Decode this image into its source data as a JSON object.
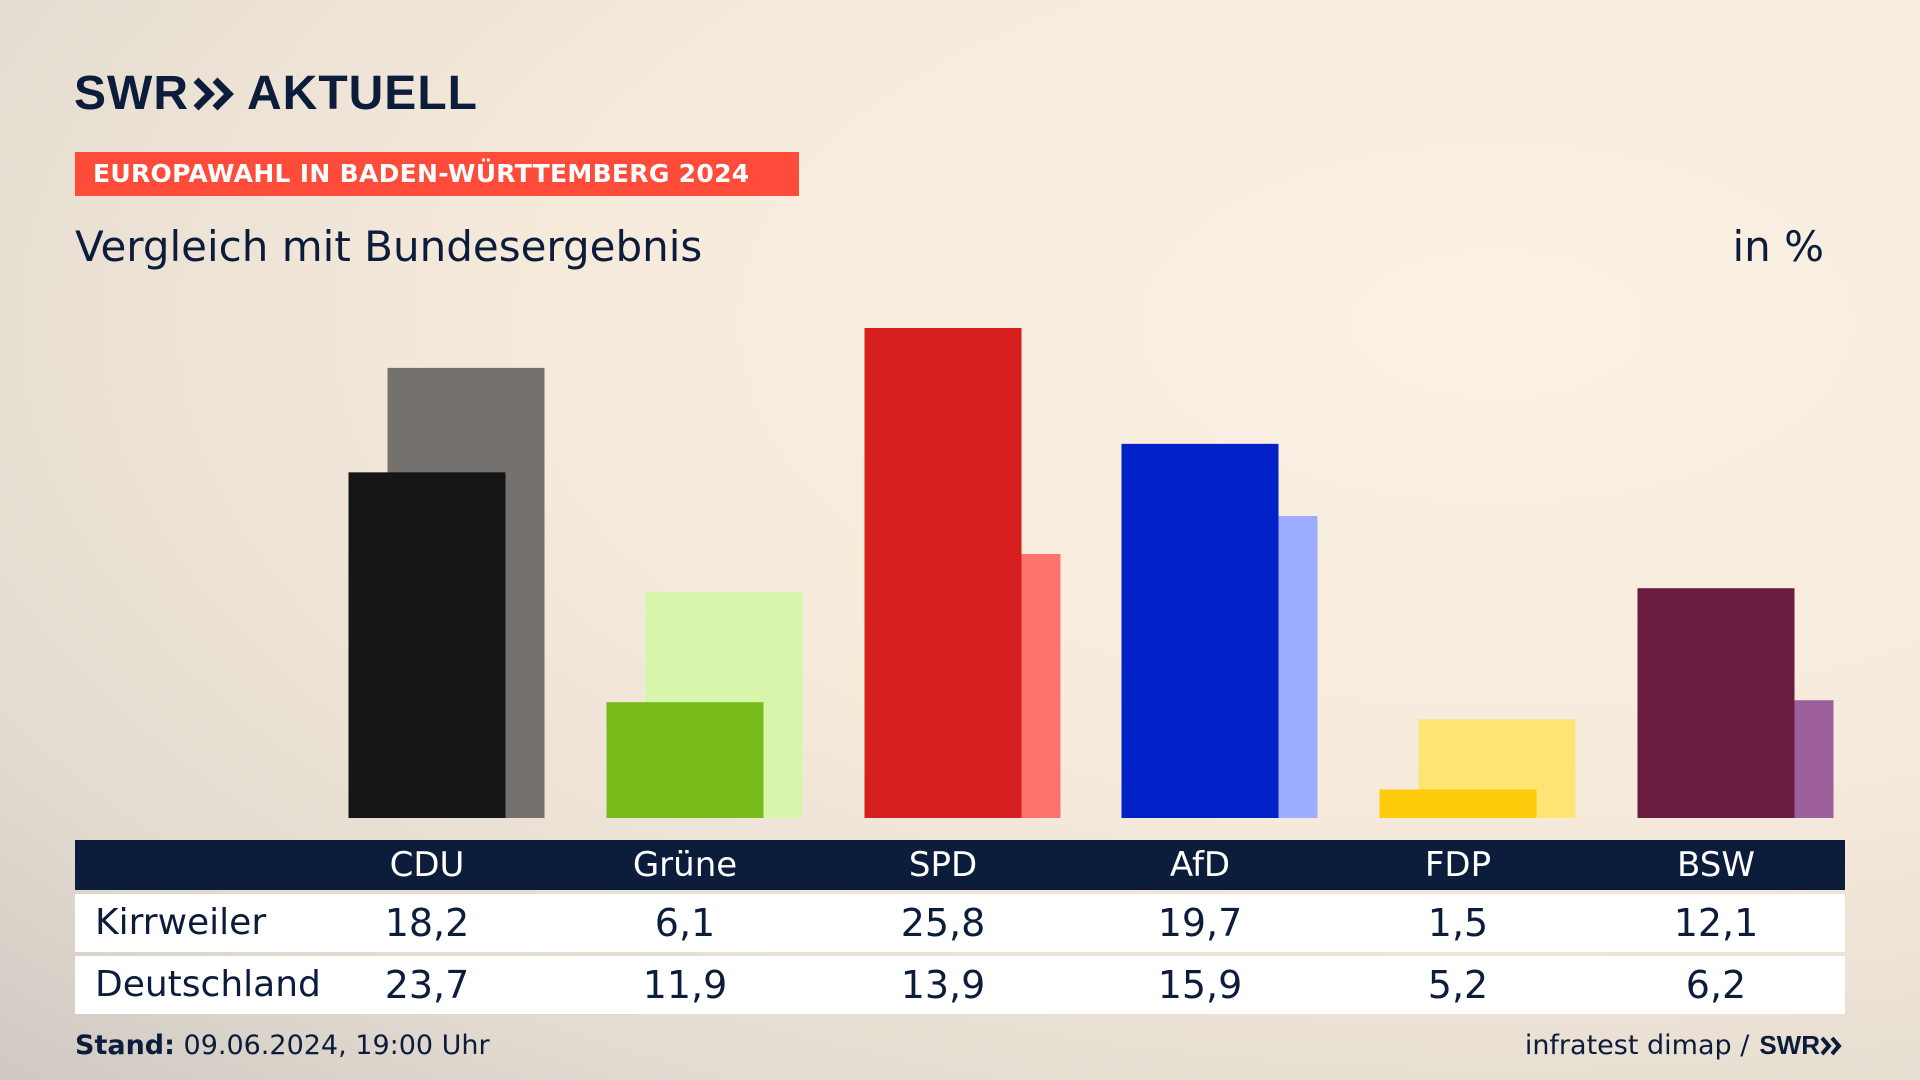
{
  "header": {
    "logo_left": "SWR",
    "logo_right": "AKTUELL",
    "banner": "EUROPAWAHL IN BADEN-WÜRTTEMBERG 2024",
    "subtitle": "Vergleich mit Bundesergebnis",
    "unit": "in %"
  },
  "chart_data": {
    "type": "bar",
    "categories": [
      "CDU",
      "Grüne",
      "SPD",
      "AfD",
      "FDP",
      "BSW"
    ],
    "series": [
      {
        "name": "Kirrweiler",
        "values": [
          18.2,
          6.1,
          25.8,
          19.7,
          1.5,
          12.1
        ]
      },
      {
        "name": "Deutschland",
        "values": [
          23.7,
          11.9,
          13.9,
          15.9,
          5.2,
          6.2
        ]
      }
    ],
    "ylim": [
      0,
      25.8
    ],
    "colors_primary": [
      "#151515",
      "#78bc1b",
      "#d71f1f",
      "#0021c7",
      "#fdcd0b",
      "#6b1a40"
    ],
    "colors_secondary": [
      "#74716e",
      "#d7f5ab",
      "#ff736f",
      "#9cacff",
      "#fde475",
      "#9d5e9c"
    ]
  },
  "table": {
    "rows": [
      {
        "label": "Kirrweiler",
        "values": [
          "18,2",
          "6,1",
          "25,8",
          "19,7",
          "1,5",
          "12,1"
        ]
      },
      {
        "label": "Deutschland",
        "values": [
          "23,7",
          "11,9",
          "13,9",
          "15,9",
          "5,2",
          "6,2"
        ]
      }
    ]
  },
  "footer": {
    "stand_label": "Stand:",
    "stand_value": "09.06.2024, 19:00 Uhr",
    "source": "infratest dimap /",
    "source_logo": "SWR"
  }
}
